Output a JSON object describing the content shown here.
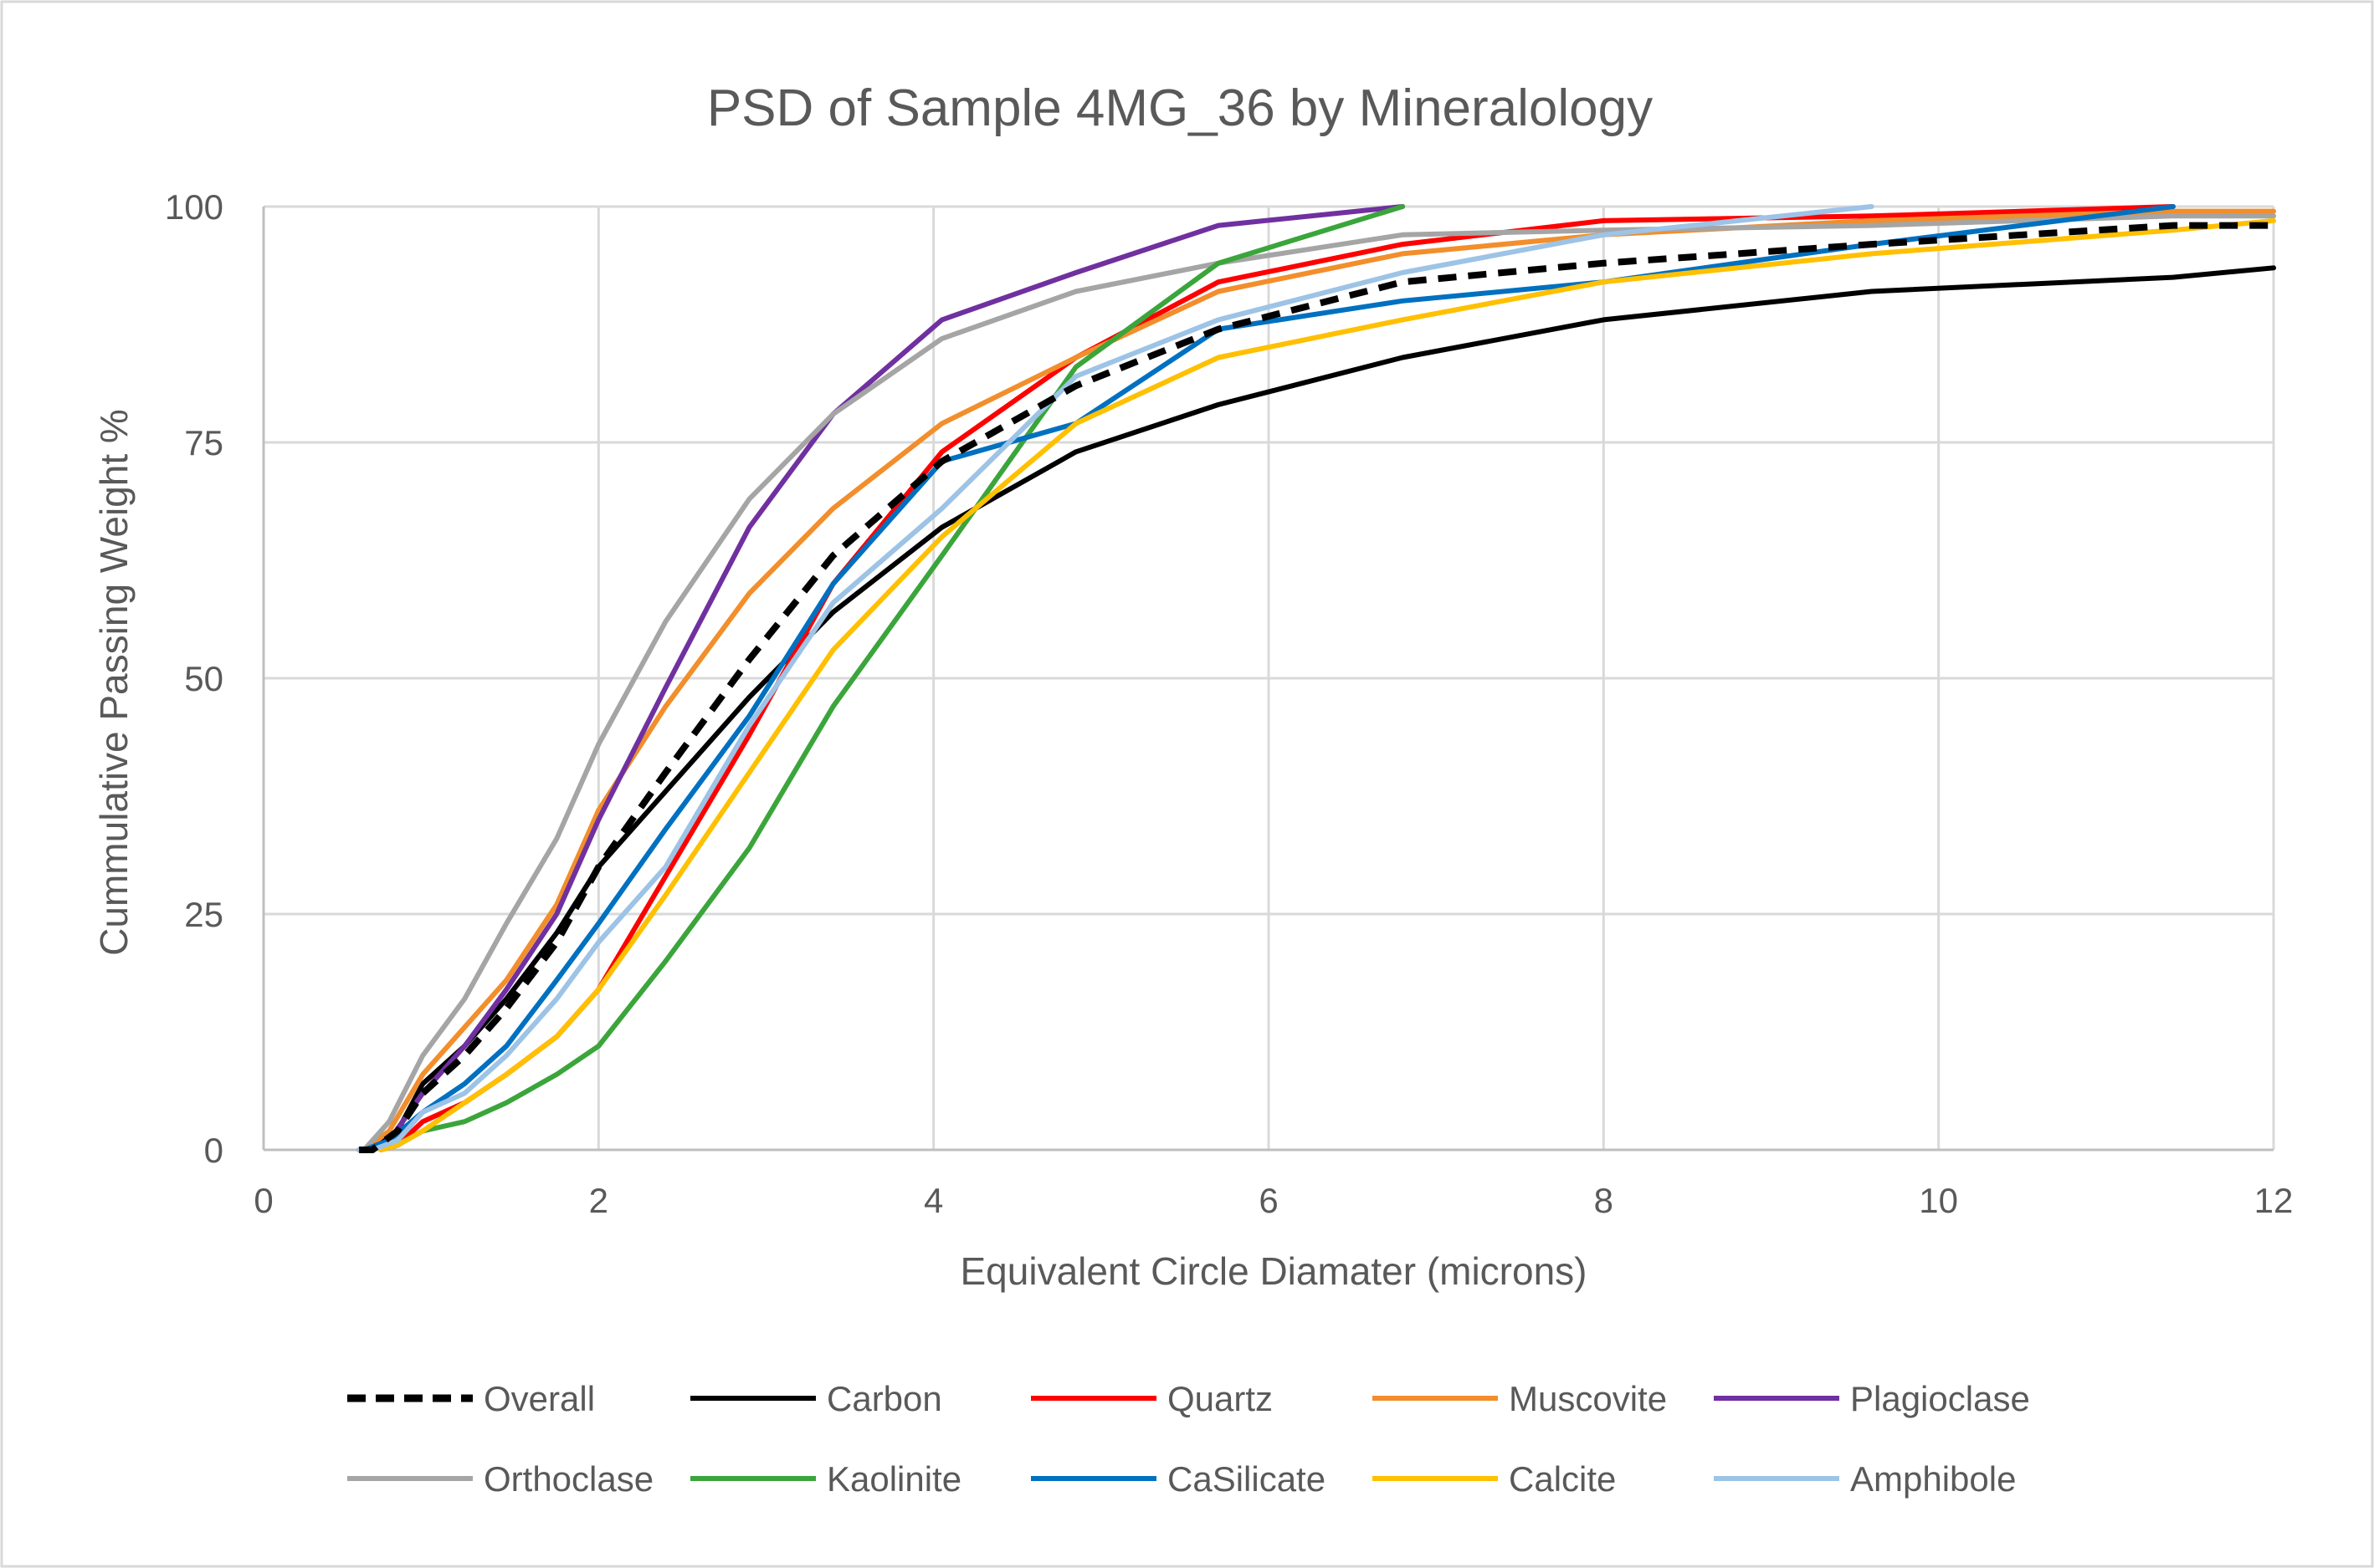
{
  "chart_data": {
    "type": "line",
    "title": "PSD of Sample 4MG_36 by Mineralology",
    "xlabel": "Equivalent Circle Diamater (microns)",
    "ylabel": "Cummulative Passing Weight %",
    "xlim": [
      0,
      12
    ],
    "ylim": [
      0,
      100
    ],
    "x_ticks": [
      0,
      2,
      4,
      6,
      8,
      10,
      12
    ],
    "y_ticks": [
      0,
      25,
      50,
      75,
      100
    ],
    "x_tick_labels": [
      "0",
      "2",
      "4",
      "6",
      "8",
      "10",
      "12"
    ],
    "y_tick_labels": [
      "0",
      "25",
      "50",
      "75",
      "100"
    ],
    "grid": true,
    "legend_position": "bottom",
    "series": [
      {
        "name": "Overall",
        "color": "#000000",
        "dash": true,
        "points": [
          [
            0.57,
            0
          ],
          [
            0.65,
            0
          ],
          [
            0.8,
            2
          ],
          [
            0.95,
            6
          ],
          [
            1.2,
            10
          ],
          [
            1.45,
            15
          ],
          [
            1.75,
            22
          ],
          [
            2.0,
            30
          ],
          [
            2.4,
            40
          ],
          [
            2.9,
            52
          ],
          [
            3.4,
            63
          ],
          [
            4.05,
            73
          ],
          [
            4.85,
            81
          ],
          [
            5.7,
            87
          ],
          [
            6.8,
            92
          ],
          [
            8.0,
            94
          ],
          [
            9.6,
            96
          ],
          [
            11.4,
            98
          ],
          [
            12.0,
            98
          ]
        ]
      },
      {
        "name": "Carbon",
        "color": "#000000",
        "dash": false,
        "points": [
          [
            0.57,
            0
          ],
          [
            0.65,
            0
          ],
          [
            0.8,
            2
          ],
          [
            0.95,
            7
          ],
          [
            1.2,
            11
          ],
          [
            1.45,
            16
          ],
          [
            1.75,
            23
          ],
          [
            2.0,
            30
          ],
          [
            2.4,
            38
          ],
          [
            2.9,
            48
          ],
          [
            3.4,
            57
          ],
          [
            4.05,
            66
          ],
          [
            4.85,
            74
          ],
          [
            5.7,
            79
          ],
          [
            6.8,
            84
          ],
          [
            8.0,
            88
          ],
          [
            9.6,
            91
          ],
          [
            11.4,
            92.5
          ],
          [
            12.0,
            93.5
          ]
        ]
      },
      {
        "name": "Quartz",
        "color": "#FF0000",
        "dash": false,
        "points": [
          [
            0.7,
            0
          ],
          [
            0.8,
            0.5
          ],
          [
            0.95,
            3
          ],
          [
            1.2,
            5
          ],
          [
            1.45,
            8
          ],
          [
            1.75,
            12
          ],
          [
            2.0,
            17
          ],
          [
            2.4,
            29
          ],
          [
            2.9,
            44
          ],
          [
            3.4,
            60
          ],
          [
            4.05,
            74
          ],
          [
            4.85,
            84
          ],
          [
            5.7,
            92
          ],
          [
            6.8,
            96
          ],
          [
            8.0,
            98.5
          ],
          [
            9.6,
            99
          ],
          [
            11.4,
            100
          ]
        ]
      },
      {
        "name": "Muscovite",
        "color": "#F28E2B",
        "dash": false,
        "points": [
          [
            0.6,
            0
          ],
          [
            0.75,
            2
          ],
          [
            0.95,
            8
          ],
          [
            1.2,
            13
          ],
          [
            1.45,
            18
          ],
          [
            1.75,
            26
          ],
          [
            2.0,
            36
          ],
          [
            2.4,
            47
          ],
          [
            2.9,
            59
          ],
          [
            3.4,
            68
          ],
          [
            4.05,
            77
          ],
          [
            4.85,
            84
          ],
          [
            5.7,
            91
          ],
          [
            6.8,
            95
          ],
          [
            8.0,
            97
          ],
          [
            9.6,
            98.5
          ],
          [
            11.4,
            99.5
          ],
          [
            12.0,
            99.5
          ]
        ]
      },
      {
        "name": "Plagioclase",
        "color": "#7030A0",
        "dash": false,
        "points": [
          [
            0.6,
            0
          ],
          [
            0.75,
            1
          ],
          [
            0.95,
            6
          ],
          [
            1.2,
            11
          ],
          [
            1.45,
            17
          ],
          [
            1.75,
            25
          ],
          [
            2.0,
            35
          ],
          [
            2.4,
            49
          ],
          [
            2.9,
            66
          ],
          [
            3.4,
            78
          ],
          [
            4.05,
            88
          ],
          [
            4.85,
            93
          ],
          [
            5.7,
            98
          ],
          [
            6.8,
            100
          ]
        ]
      },
      {
        "name": "Orthoclase",
        "color": "#A5A5A5",
        "dash": false,
        "points": [
          [
            0.6,
            0
          ],
          [
            0.75,
            3
          ],
          [
            0.95,
            10
          ],
          [
            1.2,
            16
          ],
          [
            1.45,
            24
          ],
          [
            1.75,
            33
          ],
          [
            2.0,
            43
          ],
          [
            2.4,
            56
          ],
          [
            2.9,
            69
          ],
          [
            3.4,
            78
          ],
          [
            4.05,
            86
          ],
          [
            4.85,
            91
          ],
          [
            5.7,
            94
          ],
          [
            6.8,
            97
          ],
          [
            8.0,
            97.5
          ],
          [
            9.6,
            98
          ],
          [
            11.4,
            99
          ],
          [
            12.0,
            99
          ]
        ]
      },
      {
        "name": "Kaolinite",
        "color": "#3BA53B",
        "dash": false,
        "points": [
          [
            0.7,
            0
          ],
          [
            0.8,
            0.5
          ],
          [
            0.95,
            2
          ],
          [
            1.2,
            3
          ],
          [
            1.45,
            5
          ],
          [
            1.75,
            8
          ],
          [
            2.0,
            11
          ],
          [
            2.4,
            20
          ],
          [
            2.9,
            32
          ],
          [
            3.4,
            47
          ],
          [
            4.05,
            63
          ],
          [
            4.85,
            83
          ],
          [
            5.7,
            94
          ],
          [
            6.8,
            100
          ]
        ]
      },
      {
        "name": "CaSilicate",
        "color": "#0070C0",
        "dash": false,
        "points": [
          [
            0.6,
            0
          ],
          [
            0.75,
            1
          ],
          [
            0.95,
            4
          ],
          [
            1.2,
            7
          ],
          [
            1.45,
            11
          ],
          [
            1.75,
            18
          ],
          [
            2.0,
            24
          ],
          [
            2.4,
            34
          ],
          [
            2.9,
            46
          ],
          [
            3.4,
            60
          ],
          [
            4.05,
            73
          ],
          [
            4.85,
            77
          ],
          [
            5.7,
            87
          ],
          [
            6.8,
            90
          ],
          [
            8.0,
            92
          ],
          [
            9.6,
            96
          ],
          [
            11.4,
            100
          ]
        ]
      },
      {
        "name": "Calcite",
        "color": "#FFC000",
        "dash": false,
        "points": [
          [
            0.7,
            0
          ],
          [
            0.8,
            0.5
          ],
          [
            0.95,
            2
          ],
          [
            1.2,
            5
          ],
          [
            1.45,
            8
          ],
          [
            1.75,
            12
          ],
          [
            2.0,
            17
          ],
          [
            2.4,
            27
          ],
          [
            2.9,
            40
          ],
          [
            3.4,
            53
          ],
          [
            4.05,
            65
          ],
          [
            4.85,
            77
          ],
          [
            5.7,
            84
          ],
          [
            6.8,
            88
          ],
          [
            8.0,
            92
          ],
          [
            9.6,
            95
          ],
          [
            11.4,
            97.5
          ],
          [
            12.0,
            98.5
          ]
        ]
      },
      {
        "name": "Amphibole",
        "color": "#9DC3E6",
        "dash": false,
        "points": [
          [
            0.57,
            0
          ],
          [
            0.65,
            0
          ],
          [
            0.8,
            1
          ],
          [
            0.95,
            4
          ],
          [
            1.2,
            6
          ],
          [
            1.45,
            10
          ],
          [
            1.75,
            16
          ],
          [
            2.0,
            22
          ],
          [
            2.4,
            30
          ],
          [
            2.9,
            45
          ],
          [
            3.4,
            58
          ],
          [
            4.05,
            68
          ],
          [
            4.85,
            82
          ],
          [
            5.7,
            88
          ],
          [
            6.8,
            93
          ],
          [
            8.0,
            97
          ],
          [
            9.6,
            100
          ]
        ]
      }
    ]
  }
}
